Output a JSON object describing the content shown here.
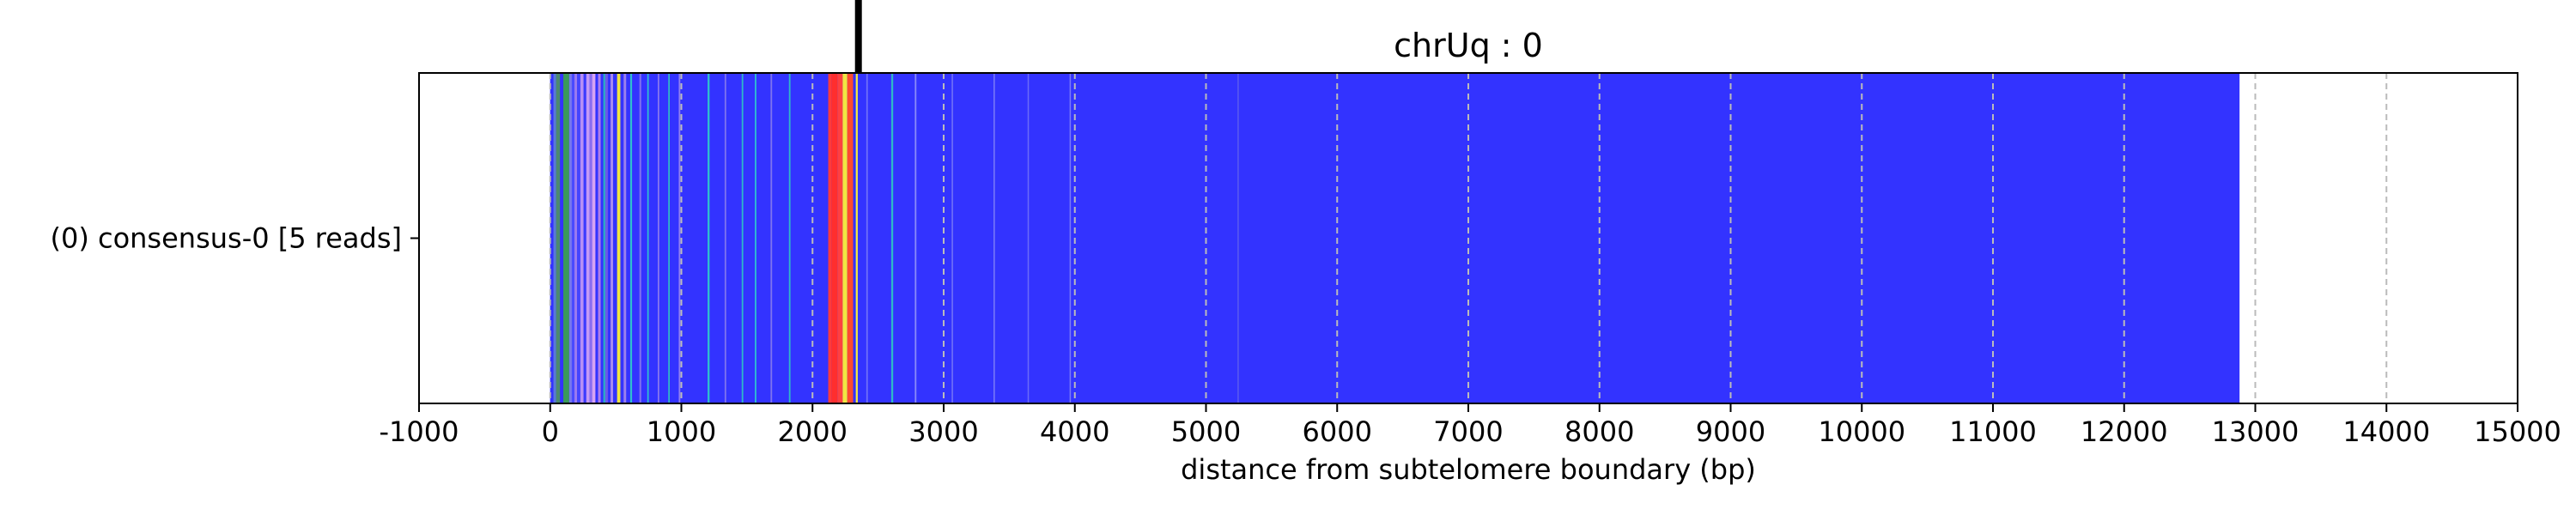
{
  "chart_data": {
    "type": "bar",
    "title": "chrUq : 0",
    "xlabel": "distance from subtelomere boundary (bp)",
    "ylabel": "",
    "xlim": [
      -1000,
      15000
    ],
    "x_ticks": [
      -1000,
      0,
      1000,
      2000,
      3000,
      4000,
      5000,
      6000,
      7000,
      8000,
      9000,
      10000,
      11000,
      12000,
      13000,
      14000,
      15000
    ],
    "x_tick_labels": [
      "-1000",
      "0",
      "1000",
      "2000",
      "3000",
      "4000",
      "5000",
      "6000",
      "7000",
      "8000",
      "9000",
      "10000",
      "11000",
      "12000",
      "13000",
      "14000",
      "15000"
    ],
    "grid": "vertical dashed",
    "rows": [
      {
        "label": "(0) consensus-0 [5 reads]",
        "read_end": 12880
      }
    ],
    "marker_position": 2350,
    "base_color": "#3333ff",
    "segments": [
      {
        "start": 0,
        "end": 25,
        "color": "#3333ff"
      },
      {
        "start": 25,
        "end": 45,
        "color": "#5a7ad8"
      },
      {
        "start": 45,
        "end": 75,
        "color": "#4c8a6e"
      },
      {
        "start": 75,
        "end": 100,
        "color": "#3333ff"
      },
      {
        "start": 100,
        "end": 145,
        "color": "#3a9a5a"
      },
      {
        "start": 145,
        "end": 165,
        "color": "#7777ee"
      },
      {
        "start": 165,
        "end": 185,
        "color": "#4a4aff"
      },
      {
        "start": 185,
        "end": 205,
        "color": "#9a7af0"
      },
      {
        "start": 205,
        "end": 230,
        "color": "#4444ff"
      },
      {
        "start": 230,
        "end": 255,
        "color": "#b78ff5"
      },
      {
        "start": 255,
        "end": 275,
        "color": "#3b3bff"
      },
      {
        "start": 275,
        "end": 300,
        "color": "#c59af5"
      },
      {
        "start": 300,
        "end": 320,
        "color": "#8a6cf0"
      },
      {
        "start": 320,
        "end": 345,
        "color": "#d8a4f2"
      },
      {
        "start": 345,
        "end": 365,
        "color": "#3333ff"
      },
      {
        "start": 365,
        "end": 385,
        "color": "#b07fe8"
      },
      {
        "start": 385,
        "end": 405,
        "color": "#3333ff"
      },
      {
        "start": 405,
        "end": 420,
        "color": "#2bb0c0"
      },
      {
        "start": 420,
        "end": 440,
        "color": "#6a5ae8"
      },
      {
        "start": 440,
        "end": 460,
        "color": "#3333ff"
      },
      {
        "start": 460,
        "end": 480,
        "color": "#a88af0"
      },
      {
        "start": 480,
        "end": 510,
        "color": "#3333ff"
      },
      {
        "start": 510,
        "end": 535,
        "color": "#f2e641"
      },
      {
        "start": 535,
        "end": 560,
        "color": "#3333ff"
      },
      {
        "start": 560,
        "end": 580,
        "color": "#9a80ec"
      },
      {
        "start": 580,
        "end": 610,
        "color": "#3333ff"
      },
      {
        "start": 610,
        "end": 625,
        "color": "#2ec0d0"
      },
      {
        "start": 625,
        "end": 680,
        "color": "#3333ff"
      },
      {
        "start": 680,
        "end": 695,
        "color": "#7f6ff0"
      },
      {
        "start": 695,
        "end": 740,
        "color": "#3333ff"
      },
      {
        "start": 740,
        "end": 752,
        "color": "#2ec0d0"
      },
      {
        "start": 752,
        "end": 820,
        "color": "#3333ff"
      },
      {
        "start": 820,
        "end": 832,
        "color": "#8a78ee"
      },
      {
        "start": 832,
        "end": 900,
        "color": "#3333ff"
      },
      {
        "start": 900,
        "end": 912,
        "color": "#2fb8c8"
      },
      {
        "start": 912,
        "end": 980,
        "color": "#3333ff"
      },
      {
        "start": 980,
        "end": 992,
        "color": "#8f7ff0"
      },
      {
        "start": 1200,
        "end": 1215,
        "color": "#2ec0d0"
      },
      {
        "start": 1330,
        "end": 1342,
        "color": "#7f73ee"
      },
      {
        "start": 1460,
        "end": 1472,
        "color": "#2fb8c8"
      },
      {
        "start": 1560,
        "end": 1572,
        "color": "#2ec0d0"
      },
      {
        "start": 1680,
        "end": 1692,
        "color": "#7f73ee"
      },
      {
        "start": 1820,
        "end": 1832,
        "color": "#2fb8c8"
      },
      {
        "start": 2120,
        "end": 2145,
        "color": "#ff3b3b"
      },
      {
        "start": 2145,
        "end": 2190,
        "color": "#ff2e2e"
      },
      {
        "start": 2190,
        "end": 2230,
        "color": "#ff4040"
      },
      {
        "start": 2230,
        "end": 2265,
        "color": "#f2e641"
      },
      {
        "start": 2265,
        "end": 2310,
        "color": "#ff4a2e"
      },
      {
        "start": 2310,
        "end": 2330,
        "color": "#3333ff"
      },
      {
        "start": 2330,
        "end": 2345,
        "color": "#f2e641"
      },
      {
        "start": 2410,
        "end": 2422,
        "color": "#6e6ef8"
      },
      {
        "start": 2600,
        "end": 2615,
        "color": "#2fb8c8"
      },
      {
        "start": 2780,
        "end": 2792,
        "color": "#8a8af8"
      },
      {
        "start": 3060,
        "end": 3072,
        "color": "#6a6af8"
      },
      {
        "start": 3380,
        "end": 3390,
        "color": "#7a7af8"
      },
      {
        "start": 3640,
        "end": 3650,
        "color": "#6a6af8"
      },
      {
        "start": 3960,
        "end": 3970,
        "color": "#7a7af8"
      },
      {
        "start": 5240,
        "end": 5250,
        "color": "#5a5af0"
      }
    ],
    "colors": {
      "grid": "#bbbbbb",
      "frame": "#000000",
      "marker": "#000000",
      "background": "#ffffff"
    }
  }
}
